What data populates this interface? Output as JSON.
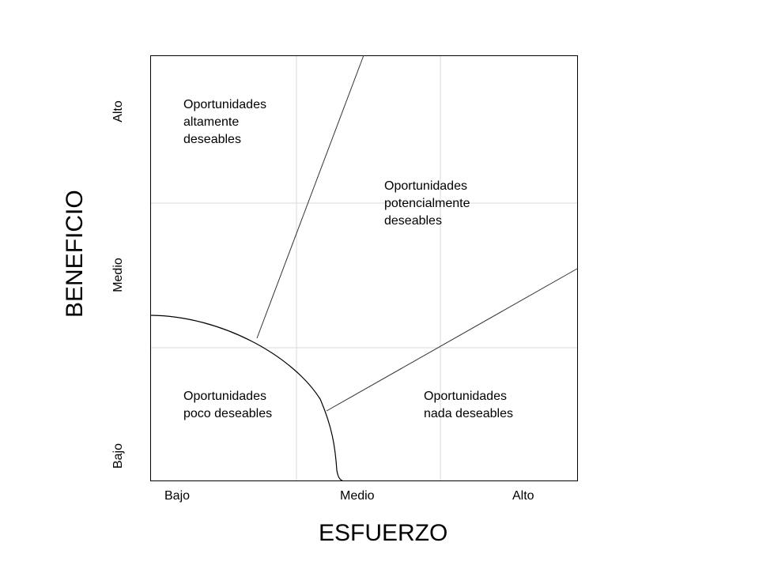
{
  "diagram": {
    "x_axis": {
      "title": "ESFUERZO",
      "ticks": [
        "Bajo",
        "Medio",
        "Alto"
      ]
    },
    "y_axis": {
      "title": "BENEFICIO",
      "ticks": [
        "Bajo",
        "Medio",
        "Alto"
      ]
    },
    "regions": [
      {
        "label": "Oportunidades\naltamente\ndeseables"
      },
      {
        "label": "Oportunidades\npotencialmente\ndeseables"
      },
      {
        "label": "Oportunidades\npoco deseables"
      },
      {
        "label": "Oportunidades\nnada deseables"
      }
    ],
    "colors": {
      "frame": "#000000",
      "grid": "#d9d9d9",
      "divider": "#333333"
    }
  }
}
